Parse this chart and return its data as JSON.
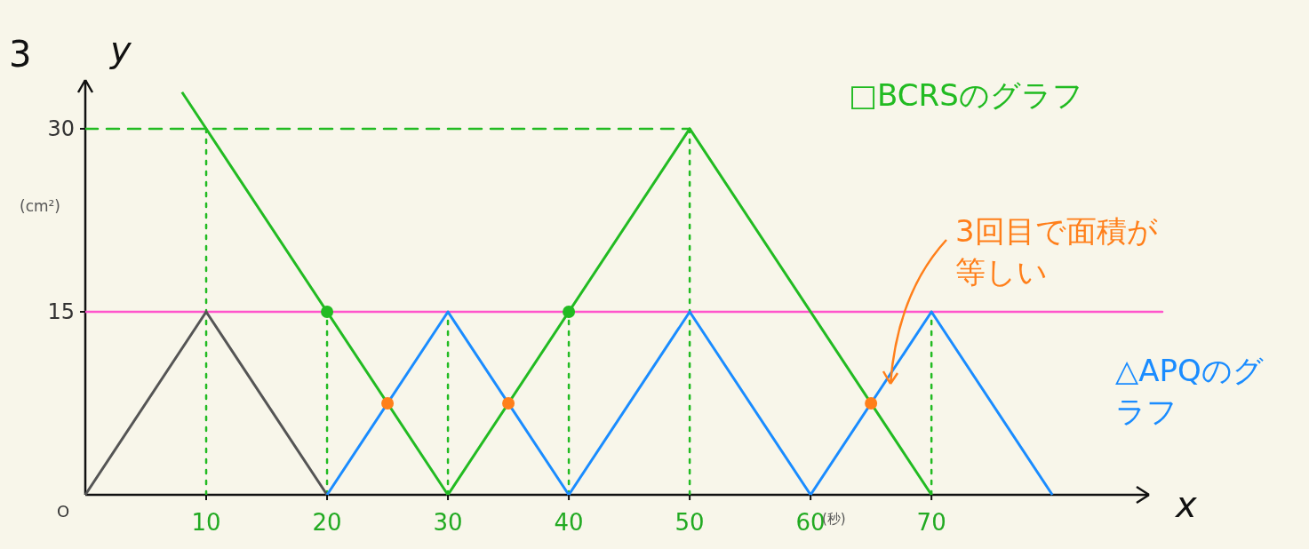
{
  "chart_data": {
    "type": "line",
    "xlabel": "x",
    "ylabel": "y",
    "xlim": [
      0,
      88
    ],
    "ylim": [
      0,
      34
    ],
    "xticks": [
      10,
      20,
      30,
      40,
      50,
      60,
      70
    ],
    "yticks": [
      15,
      30
    ],
    "grid": false,
    "marker": "none",
    "line_style": "solid",
    "series": [
      {
        "color": "#555555",
        "x": [
          0,
          10,
          20
        ],
        "values": [
          0,
          15,
          0
        ]
      },
      {
        "name": "△APQのグラフ",
        "color": "#1a8cff",
        "x": [
          20,
          30,
          40,
          50,
          60,
          70,
          80
        ],
        "values": [
          0,
          15,
          0,
          15,
          0,
          15,
          0
        ]
      },
      {
        "name": "□BCRSのグラフ",
        "color": "#22bb22",
        "x": [
          8,
          30,
          50,
          70
        ],
        "values": [
          33,
          0,
          30,
          0
        ]
      },
      {
        "type": "scatter",
        "marker": "circle",
        "color": "#22bb22",
        "x": [
          20,
          40
        ],
        "values": [
          15,
          15
        ]
      },
      {
        "type": "scatter",
        "marker": "circle",
        "color": "#ff7f1a",
        "x": [
          25,
          35,
          65
        ],
        "values": [
          7.5,
          7.5,
          7.5
        ]
      }
    ],
    "ref_lines": [
      {
        "axis": "y",
        "value": 15,
        "color": "#ff55cc",
        "line_style": "solid"
      },
      {
        "axis": "y",
        "value": 30,
        "color": "#22bb22",
        "line_style": "dashed"
      },
      {
        "axis": "x",
        "value": 10,
        "color": "#22bb22",
        "line_style": "dotted"
      },
      {
        "axis": "x",
        "value": 20,
        "color": "#22bb22",
        "line_style": "dotted"
      },
      {
        "axis": "x",
        "value": 30,
        "color": "#22bb22",
        "line_style": "dotted"
      },
      {
        "axis": "x",
        "value": 40,
        "color": "#22bb22",
        "line_style": "dotted"
      },
      {
        "axis": "x",
        "value": 50,
        "color": "#22bb22",
        "line_style": "dotted"
      },
      {
        "axis": "x",
        "value": 70,
        "color": "#22bb22",
        "line_style": "dotted"
      }
    ],
    "annotations": [
      "3回目で面積が等しい",
      "(cm²)",
      "(秒)",
      "O",
      "3"
    ]
  }
}
